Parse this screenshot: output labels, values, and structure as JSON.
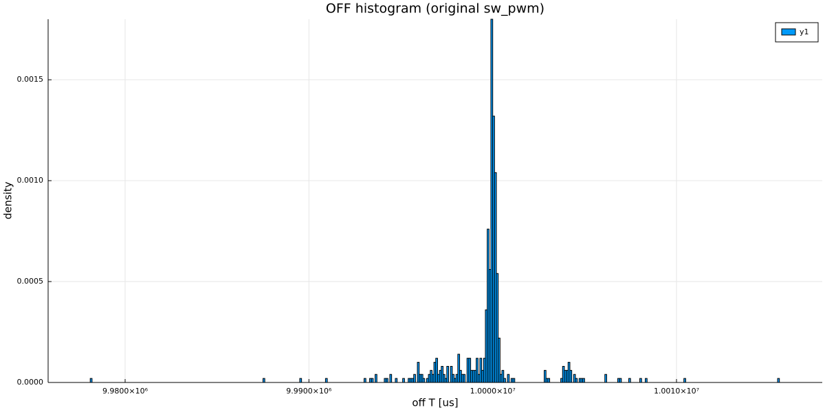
{
  "chart_data": {
    "type": "histogram",
    "title": "OFF histogram (original sw_pwm)",
    "xlabel": "off T [us]",
    "ylabel": "density",
    "bins": [
      9978100,
      9978200,
      9987500,
      9987600,
      9989500,
      9989600,
      9990900,
      9991000,
      9993000,
      9993100,
      9993300,
      9993400,
      9993500,
      9993600,
      9993700,
      9994100,
      9994200,
      9994300,
      9994400,
      9994500,
      9994700,
      9994800,
      9995100,
      9995200,
      9995400,
      9995500,
      9995600,
      9995700,
      9995800,
      9995900,
      9996000,
      9996100,
      9996200,
      9996300,
      9996400,
      9996500,
      9996600,
      9996700,
      9996800,
      9996900,
      9997000,
      9997100,
      9997200,
      9997300,
      9997400,
      9997500,
      9997600,
      9997700,
      9997800,
      9997900,
      9998000,
      9998100,
      9998200,
      9998300,
      9998400,
      9998500,
      9998600,
      9998700,
      9998800,
      9998900,
      9999000,
      9999100,
      9999200,
      9999300,
      9999400,
      9999500,
      9999600,
      9999700,
      9999800,
      9999900,
      10000000,
      10000100,
      10000200,
      10000300,
      10000400,
      10000500,
      10000600,
      10000700,
      10000800,
      10000900,
      10001000,
      10001100,
      10001200,
      10002800,
      10002900,
      10003000,
      10003100,
      10003700,
      10003800,
      10003900,
      10004000,
      10004100,
      10004200,
      10004300,
      10004400,
      10004500,
      10004600,
      10004700,
      10004800,
      10004900,
      10005000,
      10006100,
      10006200,
      10006800,
      10006900,
      10007000,
      10007400,
      10007500,
      10008000,
      10008100,
      10008300,
      10008400,
      10010400,
      10010500,
      10015500,
      10015600
    ],
    "values": [
      2e-05,
      0,
      2e-05,
      0,
      2e-05,
      0,
      2e-05,
      0,
      2e-05,
      0,
      2e-05,
      2e-05,
      0,
      4e-05,
      0,
      2e-05,
      2e-05,
      0,
      4e-05,
      0,
      2e-05,
      0,
      2e-05,
      0,
      2e-05,
      2e-05,
      2e-05,
      4e-05,
      0,
      0.0001,
      4e-05,
      4e-05,
      2e-05,
      0,
      2e-05,
      4e-05,
      6e-05,
      4e-05,
      0.0001,
      0.00012,
      4e-05,
      6e-05,
      8e-05,
      4e-05,
      2e-05,
      8e-05,
      0,
      8e-05,
      4e-05,
      2e-05,
      4e-05,
      0.00014,
      6e-05,
      4e-05,
      4e-05,
      0,
      0.00012,
      0.00012,
      6e-05,
      6e-05,
      6e-05,
      0.00012,
      4e-05,
      0.00012,
      6e-05,
      0.00012,
      0.00036,
      0.00076,
      0.00056,
      0.0018,
      0.00132,
      0.00104,
      0.00054,
      0.00022,
      4e-05,
      6e-05,
      2e-05,
      0,
      4e-05,
      0,
      2e-05,
      2e-05,
      0,
      6e-05,
      2e-05,
      2e-05,
      0,
      2e-05,
      8e-05,
      6e-05,
      6e-05,
      0.0001,
      6e-05,
      0,
      4e-05,
      2e-05,
      0,
      2e-05,
      2e-05,
      2e-05,
      0,
      4e-05,
      0,
      2e-05,
      2e-05,
      0,
      2e-05,
      0,
      2e-05,
      0,
      2e-05,
      0,
      2e-05,
      0,
      2e-05
    ],
    "series_name": "y1",
    "color": "#009af9",
    "xlim": [
      9975810,
      10017930
    ],
    "xticks": [
      {
        "value": 9980000,
        "label": "9.9800×10⁶"
      },
      {
        "value": 9990000,
        "label": "9.9900×10⁶"
      },
      {
        "value": 10000000,
        "label": "1.0000×10⁷"
      },
      {
        "value": 10010000,
        "label": "1.0010×10⁷"
      }
    ],
    "ylim": [
      0,
      0.0018
    ],
    "yticks": [
      {
        "value": 0,
        "label": "0.0000"
      },
      0.0005,
      {
        "value": 0.001,
        "label": "0.0010"
      },
      {
        "value": 0.0015,
        "label": "0.0015"
      }
    ],
    "grid": true,
    "legend": "top-right"
  }
}
